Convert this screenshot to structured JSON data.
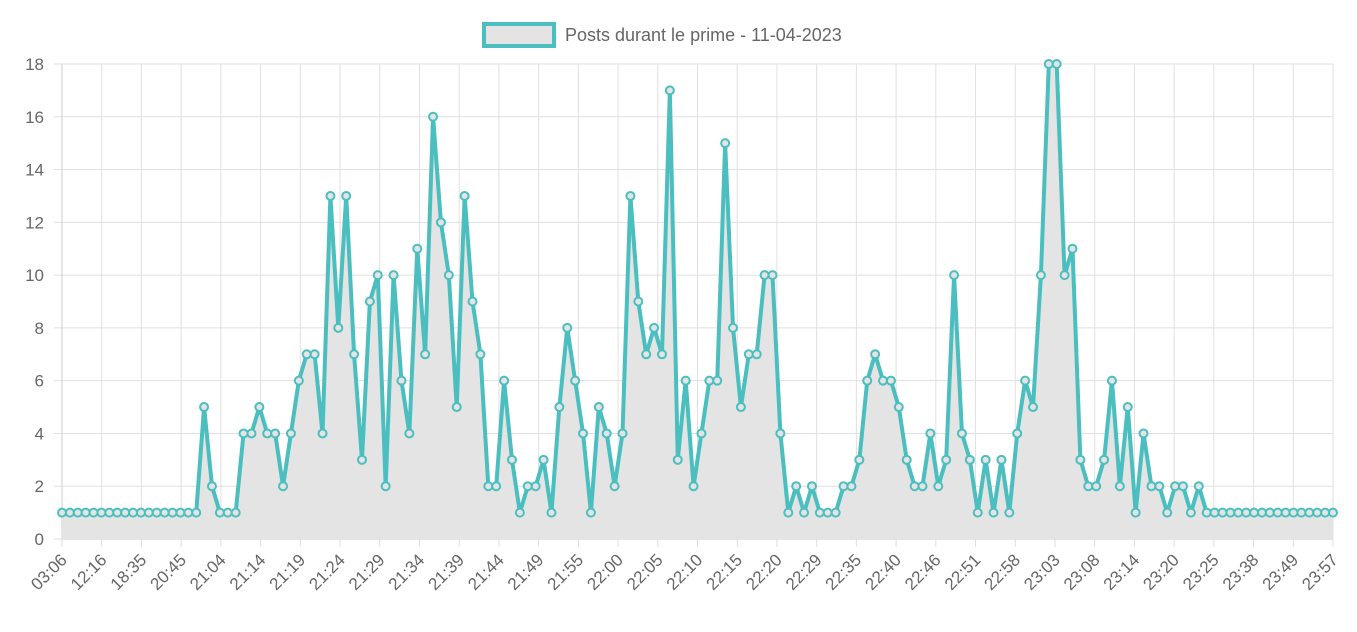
{
  "chart_data": {
    "type": "line",
    "legend_position": "top",
    "grid": true,
    "colors": {
      "line": "#4BBFBF",
      "fill": "#E4E4E4",
      "grid": "#E0E0E0",
      "text": "#666666"
    },
    "series": [
      {
        "name": "Posts durant le prime - 11-04-2023",
        "values": [
          1,
          1,
          1,
          1,
          1,
          1,
          1,
          1,
          1,
          1,
          1,
          1,
          1,
          1,
          1,
          1,
          1,
          1,
          5,
          2,
          1,
          1,
          1,
          4,
          4,
          5,
          4,
          4,
          2,
          4,
          6,
          7,
          7,
          4,
          13,
          8,
          13,
          7,
          3,
          9,
          10,
          2,
          10,
          6,
          4,
          11,
          7,
          16,
          12,
          10,
          5,
          13,
          9,
          7,
          2,
          2,
          6,
          3,
          1,
          2,
          2,
          3,
          1,
          5,
          8,
          6,
          4,
          1,
          5,
          4,
          2,
          4,
          13,
          9,
          7,
          8,
          7,
          17,
          3,
          6,
          2,
          4,
          6,
          6,
          15,
          8,
          5,
          7,
          7,
          10,
          10,
          4,
          1,
          2,
          1,
          2,
          1,
          1,
          1,
          2,
          2,
          3,
          6,
          7,
          6,
          6,
          5,
          3,
          2,
          2,
          4,
          2,
          3,
          10,
          4,
          3,
          1,
          3,
          1,
          3,
          1,
          4,
          6,
          5,
          10,
          18,
          18,
          10,
          11,
          3,
          2,
          2,
          3,
          6,
          2,
          5,
          1,
          4,
          2,
          2,
          1,
          2,
          2,
          1,
          2,
          1,
          1,
          1,
          1,
          1,
          1,
          1,
          1,
          1,
          1,
          1,
          1,
          1,
          1,
          1,
          1,
          1
        ]
      }
    ],
    "x_tick_labels": [
      "03:06",
      "12:16",
      "18:35",
      "20:45",
      "21:04",
      "21:14",
      "21:19",
      "21:24",
      "21:29",
      "21:34",
      "21:39",
      "21:44",
      "21:49",
      "21:55",
      "22:00",
      "22:05",
      "22:10",
      "22:15",
      "22:20",
      "22:29",
      "22:35",
      "22:40",
      "22:46",
      "22:51",
      "22:58",
      "23:03",
      "23:08",
      "23:14",
      "23:20",
      "23:25",
      "23:38",
      "23:49",
      "23:57"
    ],
    "y_ticks": [
      0,
      2,
      4,
      6,
      8,
      10,
      12,
      14,
      16,
      18
    ],
    "ylim": [
      0,
      18
    ]
  }
}
